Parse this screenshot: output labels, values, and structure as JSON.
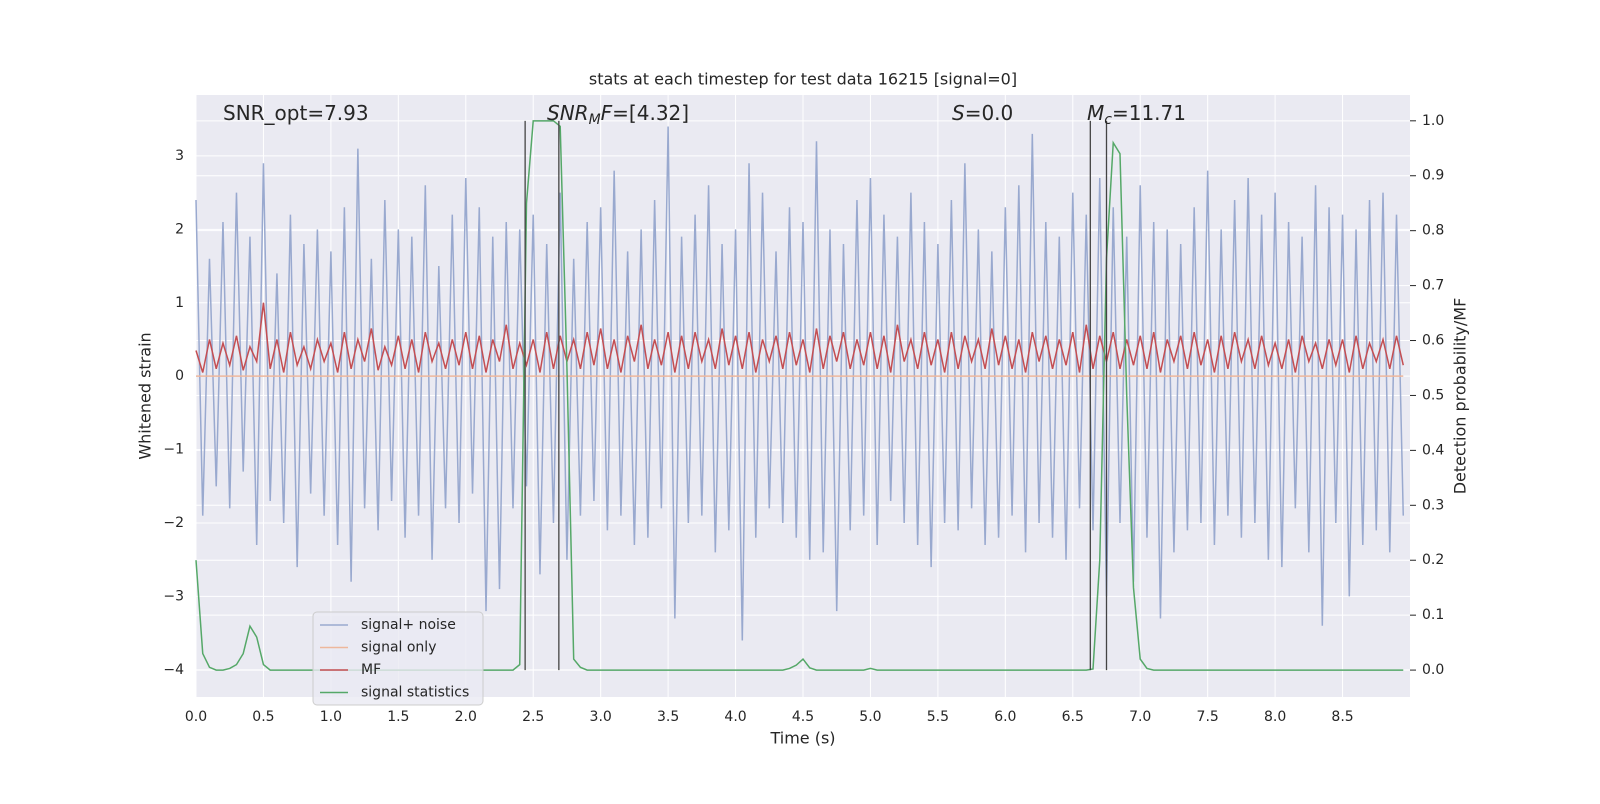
{
  "chart_data": {
    "type": "line",
    "title": "stats at each timestep for test data 16215 [signal=0]",
    "xlabel": "Time (s)",
    "ylabel": "Whitened strain",
    "y2label": "Detection probability/MF",
    "annotations": [
      [
        {
          "text": "SNR_opt=7.93"
        }
      ],
      [
        {
          "text": "SNR",
          "style": "italic"
        },
        {
          "text": "M",
          "style": "sub"
        },
        {
          "text": "F",
          "style": "italic"
        },
        {
          "text": "=[4.32]"
        }
      ],
      [
        {
          "text": "S",
          "style": "italic"
        },
        {
          "text": "=0.0"
        }
      ],
      [
        {
          "text": "M",
          "style": "italic"
        },
        {
          "text": "c",
          "style": "sub"
        },
        {
          "text": "=11.71"
        }
      ]
    ],
    "xlim": [
      0,
      9
    ],
    "ylim": [
      -4.37,
      3.83
    ],
    "y2lim": [
      -0.049,
      1.047
    ],
    "xticks": [
      {
        "value": 0,
        "label": "0.0"
      },
      0.5,
      {
        "value": 1,
        "label": "1.0"
      },
      1.5,
      {
        "value": 2,
        "label": "2.0"
      },
      2.5,
      {
        "value": 3,
        "label": "3.0"
      },
      3.5,
      {
        "value": 4,
        "label": "4.0"
      },
      4.5,
      {
        "value": 5,
        "label": "5.0"
      },
      5.5,
      {
        "value": 6,
        "label": "6.0"
      },
      6.5,
      {
        "value": 7,
        "label": "7.0"
      },
      7.5,
      {
        "value": 8,
        "label": "8.0"
      },
      8.5
    ],
    "yticks": [
      {
        "value": -4,
        "label": "−4"
      },
      {
        "value": -3,
        "label": "−3"
      },
      {
        "value": -2,
        "label": "−2"
      },
      {
        "value": -1,
        "label": "−1"
      },
      0,
      1,
      2,
      3
    ],
    "y2ticks": [
      {
        "value": 0,
        "label": "0.0"
      },
      0.1,
      0.2,
      0.3,
      0.4,
      0.5,
      0.6,
      0.7,
      0.8,
      0.9,
      {
        "value": 1,
        "label": "1.0"
      }
    ],
    "grid": true,
    "vlines": [
      2.44,
      2.69,
      6.63,
      6.75
    ],
    "x": [
      0,
      0.05,
      0.1,
      0.15,
      0.2,
      0.25,
      0.3,
      0.35,
      0.4,
      0.45,
      0.5,
      0.55,
      0.6,
      0.65,
      0.7,
      0.75,
      0.8,
      0.85,
      0.9,
      0.95,
      1,
      1.05,
      1.1,
      1.15,
      1.2,
      1.25,
      1.3,
      1.35,
      1.4,
      1.45,
      1.5,
      1.55,
      1.6,
      1.65,
      1.7,
      1.75,
      1.8,
      1.85,
      1.9,
      1.95,
      2,
      2.05,
      2.1,
      2.15,
      2.2,
      2.25,
      2.3,
      2.35,
      2.4,
      2.45,
      2.5,
      2.55,
      2.6,
      2.65,
      2.7,
      2.75,
      2.8,
      2.85,
      2.9,
      2.95,
      3,
      3.05,
      3.1,
      3.15,
      3.2,
      3.25,
      3.3,
      3.35,
      3.4,
      3.45,
      3.5,
      3.55,
      3.6,
      3.65,
      3.7,
      3.75,
      3.8,
      3.85,
      3.9,
      3.95,
      4,
      4.05,
      4.1,
      4.15,
      4.2,
      4.25,
      4.3,
      4.35,
      4.4,
      4.45,
      4.5,
      4.55,
      4.6,
      4.65,
      4.7,
      4.75,
      4.8,
      4.85,
      4.9,
      4.95,
      5,
      5.05,
      5.1,
      5.15,
      5.2,
      5.25,
      5.3,
      5.35,
      5.4,
      5.45,
      5.5,
      5.55,
      5.6,
      5.65,
      5.7,
      5.75,
      5.8,
      5.85,
      5.9,
      5.95,
      6,
      6.05,
      6.1,
      6.15,
      6.2,
      6.25,
      6.3,
      6.35,
      6.4,
      6.45,
      6.5,
      6.55,
      6.6,
      6.65,
      6.7,
      6.75,
      6.8,
      6.85,
      6.9,
      6.95,
      7,
      7.05,
      7.1,
      7.15,
      7.2,
      7.25,
      7.3,
      7.35,
      7.4,
      7.45,
      7.5,
      7.55,
      7.6,
      7.65,
      7.7,
      7.75,
      7.8,
      7.85,
      7.9,
      7.95,
      8,
      8.05,
      8.1,
      8.15,
      8.2,
      8.25,
      8.3,
      8.35,
      8.4,
      8.45,
      8.5,
      8.55,
      8.6,
      8.65,
      8.7,
      8.75,
      8.8,
      8.85,
      8.9,
      8.95
    ],
    "series": [
      {
        "name": "signal+ noise",
        "color": "#99a9cf",
        "values": [
          2.4,
          -1.9,
          1.6,
          -1.5,
          2.1,
          -1.8,
          2.5,
          -1.3,
          1.9,
          -2.3,
          2.9,
          -1.7,
          1.4,
          -2.0,
          2.2,
          -2.6,
          1.8,
          -1.6,
          2.0,
          -1.9,
          1.7,
          -2.3,
          2.3,
          -2.8,
          3.1,
          -1.8,
          1.6,
          -2.1,
          2.4,
          -1.7,
          2.0,
          -2.2,
          1.9,
          -1.9,
          2.6,
          -2.5,
          1.5,
          -1.8,
          2.2,
          -2.0,
          2.7,
          -1.6,
          2.3,
          -3.2,
          1.9,
          -2.9,
          2.1,
          -1.8,
          2.0,
          -1.5,
          2.2,
          -2.7,
          1.8,
          -2.0,
          2.5,
          -2.5,
          1.6,
          -1.9,
          2.1,
          -1.7,
          2.3,
          -2.1,
          2.8,
          -1.9,
          1.7,
          -2.3,
          2.0,
          -2.2,
          2.4,
          -1.8,
          3.4,
          -3.3,
          1.9,
          -2.0,
          2.2,
          -1.9,
          2.6,
          -2.4,
          1.8,
          -2.1,
          2.0,
          -3.6,
          2.9,
          -2.2,
          2.5,
          -1.8,
          1.7,
          -2.0,
          2.3,
          -2.2,
          2.1,
          -2.5,
          3.2,
          -2.4,
          2.0,
          -3.2,
          1.8,
          -2.1,
          2.4,
          -1.9,
          2.7,
          -2.3,
          2.2,
          -1.7,
          1.9,
          -2.0,
          2.5,
          -2.3,
          2.1,
          -2.6,
          1.8,
          -2.0,
          2.4,
          -2.1,
          2.9,
          -1.8,
          2.0,
          -2.3,
          1.7,
          -2.2,
          2.3,
          -1.9,
          2.6,
          -2.4,
          3.3,
          -2.0,
          2.1,
          -2.2,
          1.9,
          -2.5,
          2.5,
          -1.8,
          2.2,
          -2.1,
          2.7,
          -3.0,
          2.3,
          -2.0,
          1.9,
          -2.8,
          2.6,
          -2.2,
          2.1,
          -3.3,
          2.0,
          -2.4,
          1.8,
          -2.1,
          2.3,
          -2.0,
          2.8,
          -2.3,
          2.0,
          -1.9,
          2.4,
          -2.2,
          2.7,
          -2.0,
          2.2,
          -2.5,
          2.5,
          -2.6,
          2.1,
          -1.8,
          1.9,
          -2.4,
          2.6,
          -3.4,
          2.3,
          -2.0,
          2.2,
          -3.0,
          2.0,
          -2.3,
          2.4,
          -2.1,
          2.5,
          -2.4,
          2.2,
          -1.9
        ]
      },
      {
        "name": "signal only",
        "color": "#eeb79c",
        "values": [
          0,
          0,
          0,
          0,
          0,
          0,
          0,
          0,
          0,
          0,
          0,
          0,
          0,
          0,
          0,
          0,
          0,
          0,
          0,
          0,
          0,
          0,
          0,
          0,
          0,
          0,
          0,
          0,
          0,
          0,
          0,
          0,
          0,
          0,
          0,
          0,
          0,
          0,
          0,
          0,
          0,
          0,
          0,
          0,
          0,
          0,
          0,
          0,
          0,
          0,
          0,
          0,
          0,
          0,
          0,
          0,
          0,
          0,
          0,
          0,
          0,
          0,
          0,
          0,
          0,
          0,
          0,
          0,
          0,
          0,
          0,
          0,
          0,
          0,
          0,
          0,
          0,
          0,
          0,
          0,
          0,
          0,
          0,
          0,
          0,
          0,
          0,
          0,
          0,
          0,
          0,
          0,
          0,
          0,
          0,
          0,
          0,
          0,
          0,
          0,
          0,
          0,
          0,
          0,
          0,
          0,
          0,
          0,
          0,
          0,
          0,
          0,
          0,
          0,
          0,
          0,
          0,
          0,
          0,
          0,
          0,
          0,
          0,
          0,
          0,
          0,
          0,
          0,
          0,
          0,
          0,
          0,
          0,
          0,
          0,
          0,
          0,
          0,
          0,
          0,
          0,
          0,
          0,
          0,
          0,
          0,
          0,
          0,
          0,
          0,
          0,
          0,
          0,
          0,
          0,
          0,
          0,
          0,
          0,
          0,
          0,
          0,
          0,
          0,
          0,
          0,
          0,
          0,
          0,
          0,
          0,
          0,
          0,
          0,
          0,
          0,
          0,
          0,
          0,
          0
        ]
      },
      {
        "name": "MF",
        "color": "#c44e52",
        "values": [
          0.35,
          0.05,
          0.5,
          0.1,
          0.45,
          0.15,
          0.55,
          0.08,
          0.4,
          0.2,
          1.0,
          0.1,
          0.5,
          0.05,
          0.6,
          0.15,
          0.4,
          0.1,
          0.5,
          0.2,
          0.45,
          0.05,
          0.6,
          0.1,
          0.5,
          0.2,
          0.65,
          0.08,
          0.4,
          0.15,
          0.55,
          0.1,
          0.5,
          0.05,
          0.6,
          0.2,
          0.45,
          0.1,
          0.5,
          0.15,
          0.6,
          0.1,
          0.55,
          0.05,
          0.5,
          0.2,
          0.7,
          0.1,
          0.45,
          0.15,
          0.5,
          0.05,
          0.6,
          0.1,
          0.55,
          0.2,
          0.5,
          0.1,
          0.6,
          0.15,
          0.65,
          0.1,
          0.5,
          0.05,
          0.55,
          0.2,
          0.7,
          0.1,
          0.5,
          0.15,
          0.6,
          0.05,
          0.55,
          0.1,
          0.6,
          0.2,
          0.5,
          0.1,
          0.65,
          0.15,
          0.55,
          0.1,
          0.6,
          0.05,
          0.5,
          0.2,
          0.55,
          0.1,
          0.6,
          0.15,
          0.5,
          0.05,
          0.65,
          0.1,
          0.55,
          0.2,
          0.6,
          0.1,
          0.5,
          0.15,
          0.6,
          0.1,
          0.55,
          0.05,
          0.7,
          0.2,
          0.5,
          0.1,
          0.6,
          0.15,
          0.5,
          0.05,
          0.6,
          0.1,
          0.55,
          0.2,
          0.5,
          0.1,
          0.65,
          0.15,
          0.55,
          0.1,
          0.5,
          0.05,
          0.6,
          0.2,
          0.55,
          0.1,
          0.5,
          0.15,
          0.6,
          0.05,
          0.7,
          0.1,
          0.55,
          0.2,
          0.6,
          0.1,
          0.5,
          0.15,
          0.55,
          0.1,
          0.6,
          0.05,
          0.5,
          0.2,
          0.55,
          0.1,
          0.6,
          0.15,
          0.5,
          0.05,
          0.55,
          0.1,
          0.6,
          0.2,
          0.5,
          0.1,
          0.55,
          0.15,
          0.45,
          0.1,
          0.5,
          0.05,
          0.55,
          0.2,
          0.45,
          0.1,
          0.5,
          0.15,
          0.5,
          0.05,
          0.55,
          0.1,
          0.45,
          0.2,
          0.5,
          0.1,
          0.55,
          0.15
        ]
      },
      {
        "name": "signal statistics",
        "color": "#55a868",
        "axis": "y2",
        "values": [
          0.2,
          0.03,
          0.005,
          0,
          0,
          0.003,
          0.01,
          0.03,
          0.08,
          0.06,
          0.01,
          0,
          0,
          0,
          0,
          0,
          0,
          0,
          0,
          0,
          0,
          0,
          0,
          0,
          0,
          0,
          0,
          0,
          0,
          0,
          0,
          0,
          0,
          0,
          0,
          0,
          0,
          0,
          0,
          0,
          0,
          0,
          0,
          0,
          0,
          0,
          0,
          0,
          0.01,
          0.85,
          1.0,
          1.0,
          1.0,
          1.0,
          0.99,
          0.55,
          0.02,
          0.005,
          0,
          0,
          0,
          0,
          0,
          0,
          0,
          0,
          0,
          0,
          0,
          0,
          0,
          0,
          0,
          0,
          0,
          0,
          0,
          0,
          0,
          0,
          0,
          0,
          0,
          0,
          0,
          0,
          0,
          0,
          0.003,
          0.009,
          0.02,
          0.004,
          0,
          0,
          0,
          0,
          0,
          0,
          0,
          0,
          0.003,
          0,
          0,
          0,
          0,
          0,
          0,
          0,
          0,
          0,
          0,
          0,
          0,
          0,
          0,
          0,
          0,
          0,
          0,
          0,
          0,
          0,
          0,
          0,
          0,
          0,
          0,
          0,
          0,
          0,
          0,
          0,
          0,
          0.002,
          0.2,
          0.75,
          0.96,
          0.94,
          0.5,
          0.15,
          0.02,
          0.003,
          0,
          0,
          0,
          0,
          0,
          0,
          0,
          0,
          0,
          0,
          0,
          0,
          0,
          0,
          0,
          0,
          0,
          0,
          0,
          0,
          0,
          0,
          0,
          0,
          0,
          0,
          0,
          0,
          0,
          0,
          0,
          0,
          0,
          0,
          0,
          0,
          0,
          0
        ]
      }
    ]
  }
}
